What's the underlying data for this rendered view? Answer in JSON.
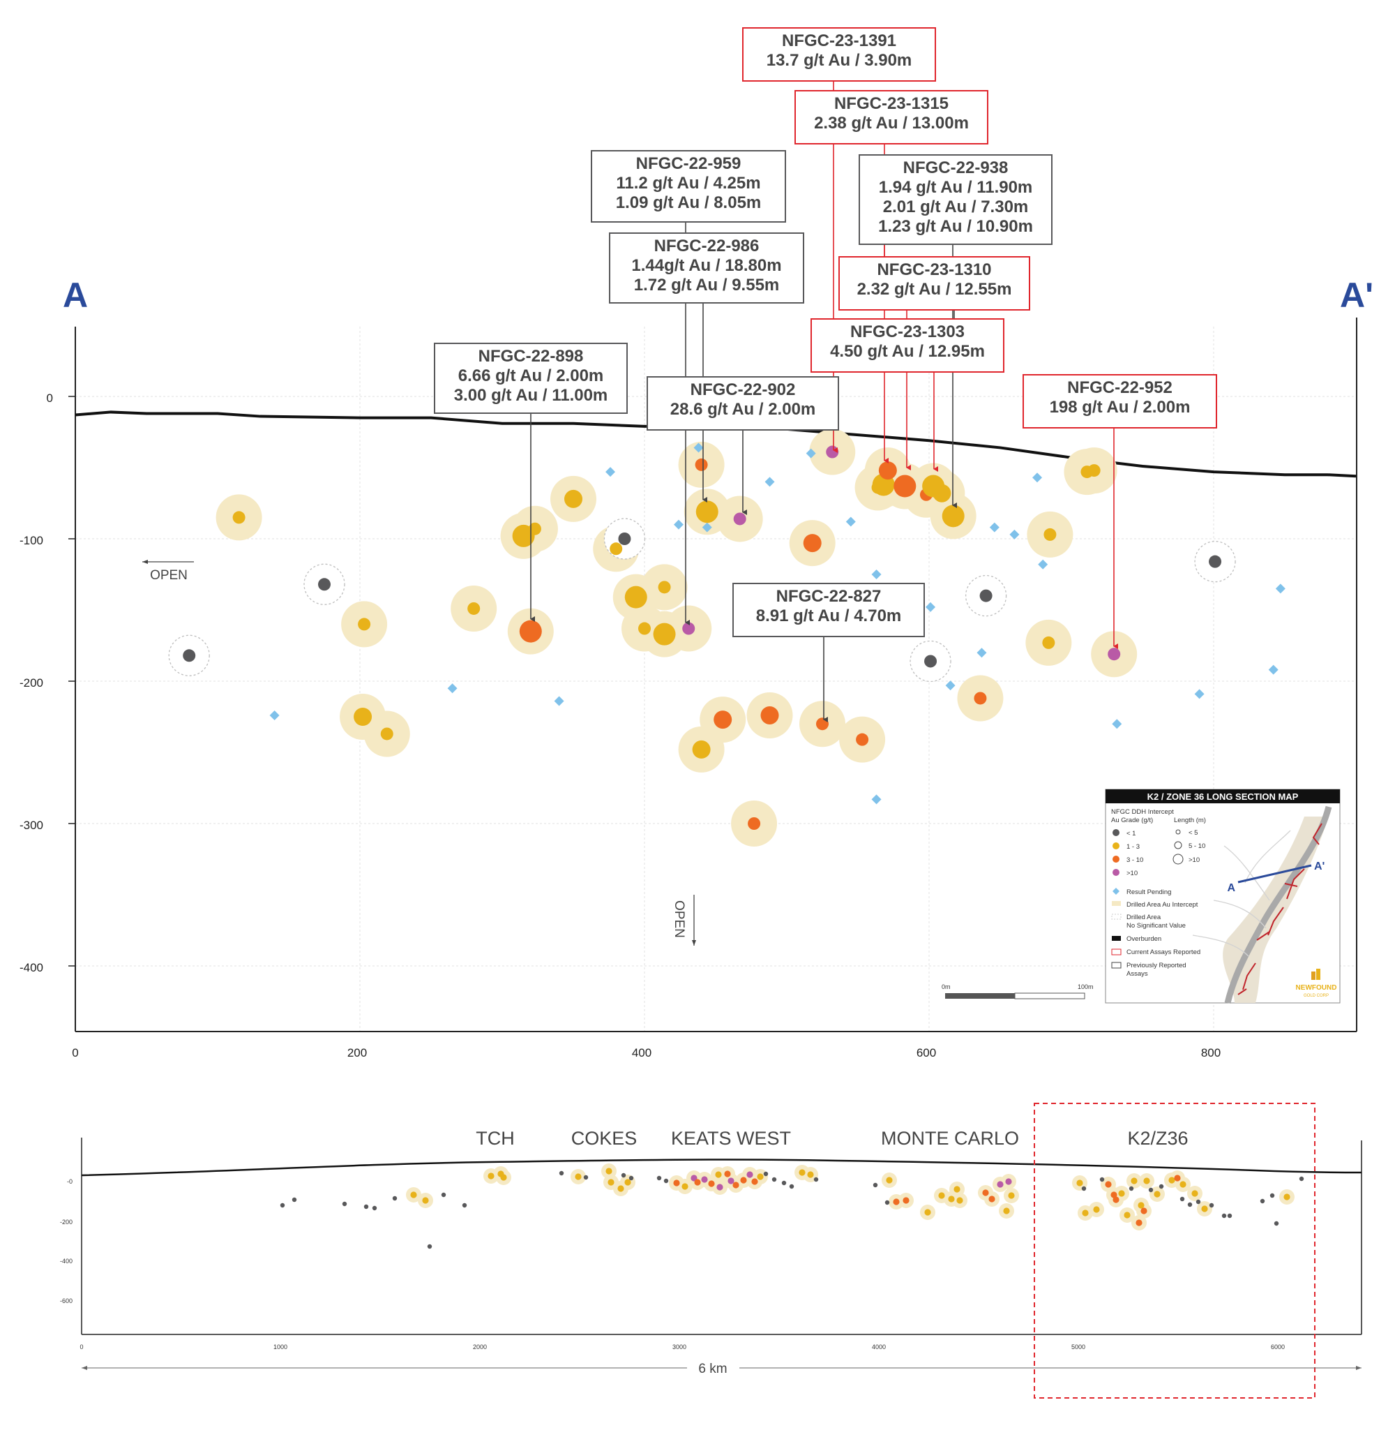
{
  "section_letters": {
    "left": "A",
    "right": "A'"
  },
  "open_labels": {
    "left": "OPEN",
    "down": "OPEN"
  },
  "chart_data": {
    "type": "scatter",
    "x_ticks": [
      "0",
      "200",
      "400",
      "600",
      "800"
    ],
    "y_ticks": [
      "0",
      "-100",
      "-200",
      "-300",
      "-400"
    ],
    "xlim": [
      0,
      900
    ],
    "ylim": [
      -445,
      50
    ],
    "topography": [
      [
        0,
        -13
      ],
      [
        25,
        -11
      ],
      [
        50,
        -12
      ],
      [
        100,
        -12
      ],
      [
        130,
        -14
      ],
      [
        200,
        -15
      ],
      [
        250,
        -15
      ],
      [
        300,
        -19
      ],
      [
        350,
        -19
      ],
      [
        400,
        -21
      ],
      [
        450,
        -21
      ],
      [
        500,
        -23
      ],
      [
        550,
        -27
      ],
      [
        600,
        -31
      ],
      [
        650,
        -36
      ],
      [
        700,
        -43
      ],
      [
        750,
        -49
      ],
      [
        800,
        -53
      ],
      [
        850,
        -55
      ],
      [
        880,
        -55
      ],
      [
        900,
        -56
      ]
    ],
    "intercepts": [
      {
        "x": 115,
        "y": -85,
        "grade": "1-3",
        "size": "s"
      },
      {
        "x": 80,
        "y": -182,
        "grade": "<1",
        "size": "s"
      },
      {
        "x": 175,
        "y": -132,
        "grade": "<1",
        "size": "s"
      },
      {
        "x": 203,
        "y": -160,
        "grade": "1-3",
        "size": "s"
      },
      {
        "x": 202,
        "y": -225,
        "grade": "1-3",
        "size": "m"
      },
      {
        "x": 219,
        "y": -237,
        "grade": "1-3",
        "size": "s"
      },
      {
        "x": 280,
        "y": -149,
        "grade": "1-3",
        "size": "s"
      },
      {
        "x": 315,
        "y": -98,
        "grade": "1-3",
        "size": "l"
      },
      {
        "x": 323,
        "y": -93,
        "grade": "1-3",
        "size": "s"
      },
      {
        "x": 320,
        "y": -165,
        "grade": "3-10",
        "size": "l"
      },
      {
        "x": 350,
        "y": -72,
        "grade": "1-3",
        "size": "m"
      },
      {
        "x": 380,
        "y": -107,
        "grade": "1-3",
        "size": "s"
      },
      {
        "x": 386,
        "y": -100,
        "grade": "<1",
        "size": "s"
      },
      {
        "x": 394,
        "y": -141,
        "grade": "1-3",
        "size": "l"
      },
      {
        "x": 400,
        "y": -163,
        "grade": "1-3",
        "size": "s"
      },
      {
        "x": 414,
        "y": -134,
        "grade": "1-3",
        "size": "s"
      },
      {
        "x": 414,
        "y": -167,
        "grade": "1-3",
        "size": "l"
      },
      {
        "x": 431,
        "y": -163,
        "grade": ">10",
        "size": "s"
      },
      {
        "x": 440,
        "y": -48,
        "grade": "3-10",
        "size": "s"
      },
      {
        "x": 444,
        "y": -81,
        "grade": "1-3",
        "size": "l"
      },
      {
        "x": 440,
        "y": -248,
        "grade": "1-3",
        "size": "m"
      },
      {
        "x": 455,
        "y": -227,
        "grade": "3-10",
        "size": "m"
      },
      {
        "x": 467,
        "y": -86,
        "grade": ">10",
        "size": "s"
      },
      {
        "x": 488,
        "y": -224,
        "grade": "3-10",
        "size": "m"
      },
      {
        "x": 477,
        "y": -300,
        "grade": "3-10",
        "size": "s"
      },
      {
        "x": 518,
        "y": -103,
        "grade": "3-10",
        "size": "m"
      },
      {
        "x": 525,
        "y": -230,
        "grade": "3-10",
        "size": "s"
      },
      {
        "x": 532,
        "y": -39,
        "grade": ">10",
        "size": "s"
      },
      {
        "x": 553,
        "y": -241,
        "grade": "3-10",
        "size": "s"
      },
      {
        "x": 564,
        "y": -64,
        "grade": "1-3",
        "size": "s"
      },
      {
        "x": 568,
        "y": -62,
        "grade": "1-3",
        "size": "l"
      },
      {
        "x": 571,
        "y": -52,
        "grade": "3-10",
        "size": "m"
      },
      {
        "x": 583,
        "y": -63,
        "grade": "3-10",
        "size": "l"
      },
      {
        "x": 598,
        "y": -69,
        "grade": "3-10",
        "size": "s"
      },
      {
        "x": 603,
        "y": -63,
        "grade": "1-3",
        "size": "l"
      },
      {
        "x": 609,
        "y": -68,
        "grade": "1-3",
        "size": "m"
      },
      {
        "x": 617,
        "y": -84,
        "grade": "1-3",
        "size": "l"
      },
      {
        "x": 601,
        "y": -186,
        "grade": "<1",
        "size": "s"
      },
      {
        "x": 640,
        "y": -140,
        "grade": "<1",
        "size": "s"
      },
      {
        "x": 636,
        "y": -212,
        "grade": "3-10",
        "size": "s"
      },
      {
        "x": 685,
        "y": -97,
        "grade": "1-3",
        "size": "s"
      },
      {
        "x": 684,
        "y": -173,
        "grade": "1-3",
        "size": "s"
      },
      {
        "x": 711,
        "y": -53,
        "grade": "1-3",
        "size": "s"
      },
      {
        "x": 716,
        "y": -52,
        "grade": "1-3",
        "size": "s"
      },
      {
        "x": 730,
        "y": -181,
        "grade": ">10",
        "size": "s"
      },
      {
        "x": 801,
        "y": -116,
        "grade": "<1",
        "size": "s"
      }
    ],
    "pending": [
      [
        140,
        -224
      ],
      [
        265,
        -205
      ],
      [
        340,
        -214
      ],
      [
        376,
        -53
      ],
      [
        424,
        -90
      ],
      [
        438,
        -36
      ],
      [
        444,
        -92
      ],
      [
        488,
        -60
      ],
      [
        517,
        -40
      ],
      [
        545,
        -88
      ],
      [
        563,
        -125
      ],
      [
        563,
        -283
      ],
      [
        601,
        -148
      ],
      [
        615,
        -203
      ],
      [
        637,
        -180
      ],
      [
        646,
        -92
      ],
      [
        660,
        -97
      ],
      [
        676,
        -57
      ],
      [
        680,
        -118
      ],
      [
        732,
        -230
      ],
      [
        790,
        -209
      ],
      [
        842,
        -192
      ],
      [
        847,
        -135
      ]
    ],
    "callouts": [
      {
        "hole": "NFGC-23-1391",
        "lines": [
          "13.7 g/t Au / 3.90m"
        ],
        "current": true
      },
      {
        "hole": "NFGC-23-1315",
        "lines": [
          "2.38 g/t Au / 13.00m"
        ],
        "current": true
      },
      {
        "hole": "NFGC-22-959",
        "lines": [
          "11.2 g/t Au / 4.25m",
          "1.09 g/t Au / 8.05m"
        ],
        "current": false
      },
      {
        "hole": "NFGC-22-938",
        "lines": [
          "1.94 g/t Au / 11.90m",
          "2.01 g/t Au / 7.30m",
          "1.23 g/t Au / 10.90m"
        ],
        "current": false
      },
      {
        "hole": "NFGC-22-986",
        "lines": [
          "1.44g/t Au / 18.80m",
          "1.72 g/t Au / 9.55m"
        ],
        "current": false
      },
      {
        "hole": "NFGC-23-1310",
        "lines": [
          "2.32 g/t Au / 12.55m"
        ],
        "current": true
      },
      {
        "hole": "NFGC-23-1303",
        "lines": [
          "4.50 g/t Au / 12.95m"
        ],
        "current": true
      },
      {
        "hole": "NFGC-22-898",
        "lines": [
          "6.66 g/t Au / 2.00m",
          "3.00 g/t Au / 11.00m"
        ],
        "current": false
      },
      {
        "hole": "NFGC-22-902",
        "lines": [
          "28.6 g/t Au / 2.00m"
        ],
        "current": false
      },
      {
        "hole": "NFGC-22-952",
        "lines": [
          "198 g/t Au / 2.00m"
        ],
        "current": true
      },
      {
        "hole": "NFGC-22-827",
        "lines": [
          "8.91 g/t Au / 4.70m"
        ],
        "current": false
      }
    ]
  },
  "legend": {
    "title": "K2 / ZONE 36 LONG SECTION MAP",
    "intercept_heading": "NFGC DDH Intercept",
    "grade_heading": "Au Grade (g/t)",
    "length_heading": "Length (m)",
    "grades": [
      "< 1",
      "1 - 3",
      "3 - 10",
      ">10"
    ],
    "lengths": [
      "< 5",
      "5 - 10",
      ">10"
    ],
    "pending": "Result Pending",
    "drilled_intercept": "Drilled Area Au Intercept",
    "drilled_nsv_1": "Drilled Area",
    "drilled_nsv_2": "No Significant Value",
    "overburden": "Overburden",
    "current": "Current Assays Reported",
    "previous_1": "Previously Reported",
    "previous_2": "Assays",
    "scale_start": "0m",
    "scale_end": "100m",
    "map_a": "A",
    "map_a_prime": "A'",
    "logo_1": "NEWFOUND",
    "logo_2": "GOLD CORP"
  },
  "overview": {
    "zones": [
      "TCH",
      "COKES",
      "KEATS WEST",
      "MONTE CARLO",
      "K2/Z36"
    ],
    "x_ticks": [
      "0",
      "1000",
      "2000",
      "3000",
      "4000",
      "5000",
      "6000"
    ],
    "y_ticks": [
      "-0",
      "-200",
      "-400",
      "-600"
    ],
    "distance_label": "6 km"
  },
  "colors": {
    "grade_lt1": "#58585a",
    "grade_1_3": "#e8b21a",
    "grade_3_10": "#ee6b22",
    "grade_gt10": "#b95aa6",
    "halo": "#f5e9c4",
    "pending": "#7fc1ea",
    "current_box": "#e0262d",
    "previous_box": "#58585a",
    "section_letter": "#2a4a9a"
  }
}
